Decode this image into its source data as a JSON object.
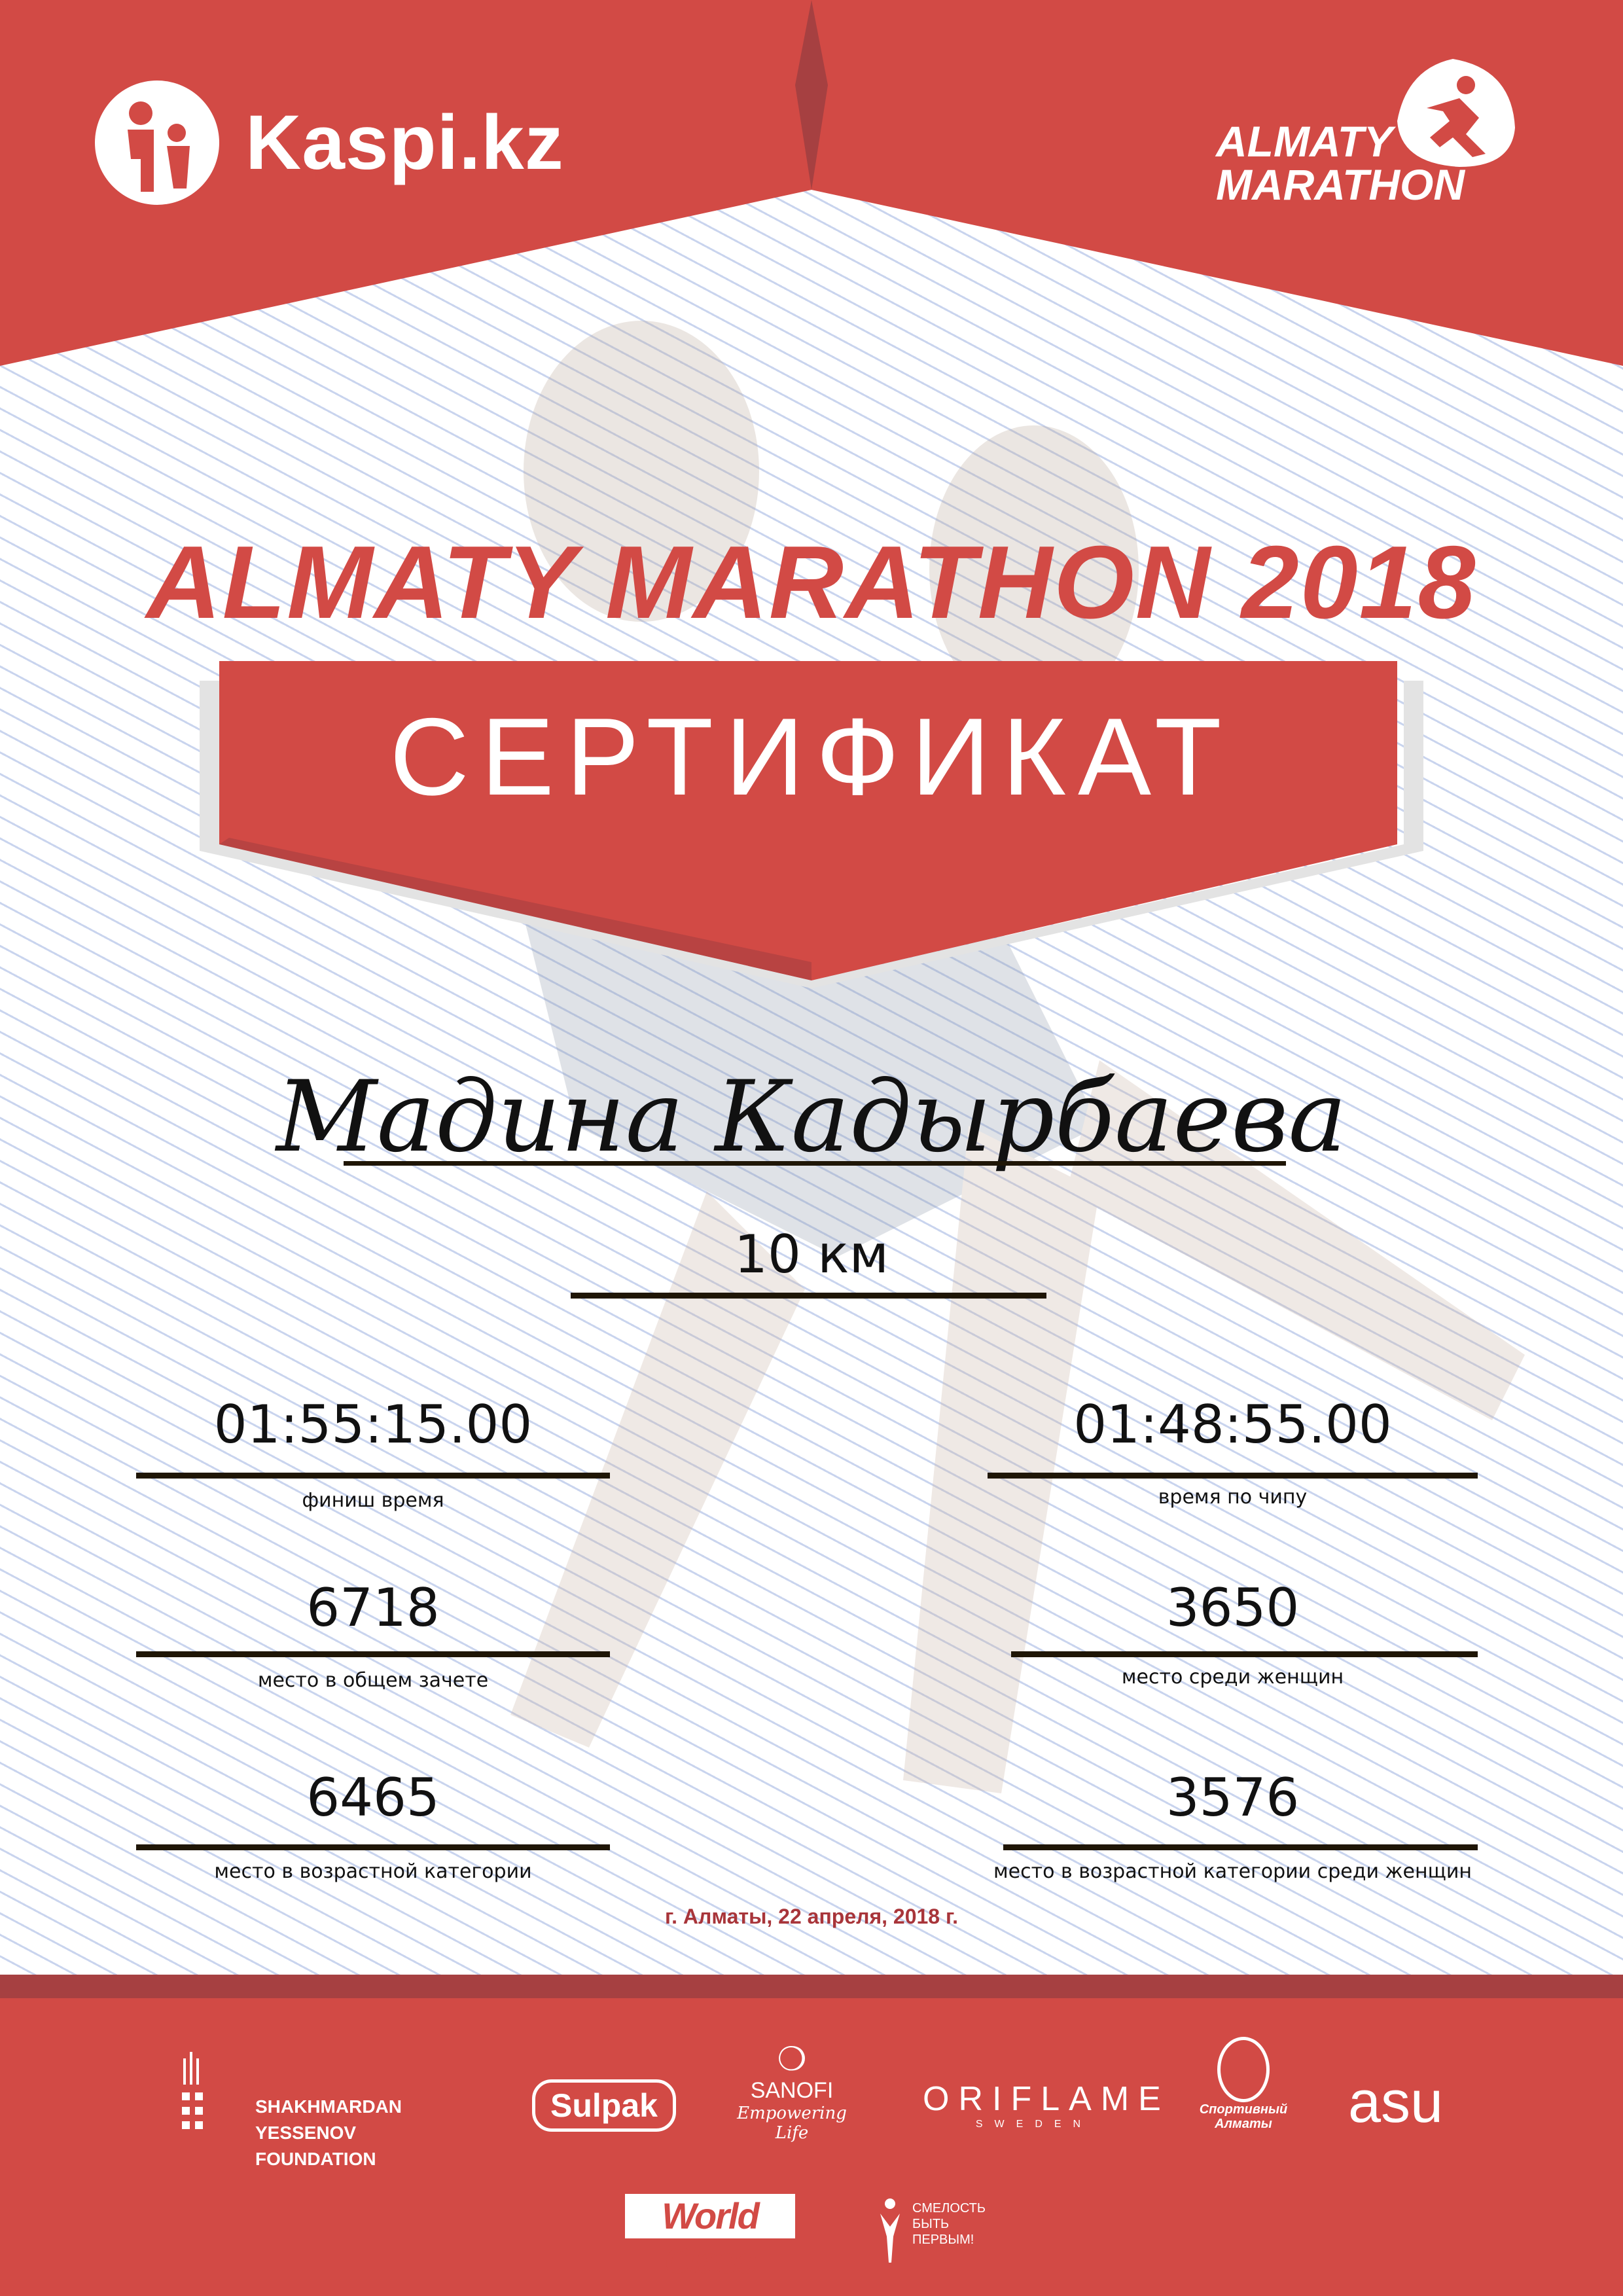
{
  "header": {
    "sponsor_logo": "Kaspi.kz",
    "event_logo": "ALMATY MARATHON"
  },
  "title": "ALMATY MARATHON 2018",
  "certificate_label": "СЕРТИФИКАТ",
  "participant_name": "Мадина Кадырбаева",
  "distance": "10 км",
  "results": {
    "finish_time": {
      "value": "01:55:15.00",
      "label": "финиш время"
    },
    "chip_time": {
      "value": "01:48:55.00",
      "label": "время по чипу"
    },
    "overall_place": {
      "value": "6718",
      "label": "место в общем зачете"
    },
    "women_place": {
      "value": "3650",
      "label": "место среди женщин"
    },
    "age_place": {
      "value": "6465",
      "label": "место в возрастной категории"
    },
    "women_age_place": {
      "value": "3576",
      "label": "место в возрастной категории среди женщин"
    }
  },
  "date_place": "г. Алматы, 22 апреля, 2018 г.",
  "partners": {
    "yessenov": "SHAKHMARDAN YESSENOV FOUNDATION",
    "sulpak": "Sulpak",
    "sanofi": "SANOFI",
    "sanofi_tagline": "Empowering Life",
    "oriflame": "ORIFLAME",
    "oriflame_sub": "SWEDEN",
    "sport_almaty": "Спортивный Алматы",
    "asu": "asu",
    "worldclass": "World Class",
    "fund": "СМЕЛОСТЬ БЫТЬ ПЕРВЫМ!"
  },
  "colors": {
    "brand_red": "#d24a45",
    "dark_red": "#a64041",
    "line": "#1f1606"
  }
}
